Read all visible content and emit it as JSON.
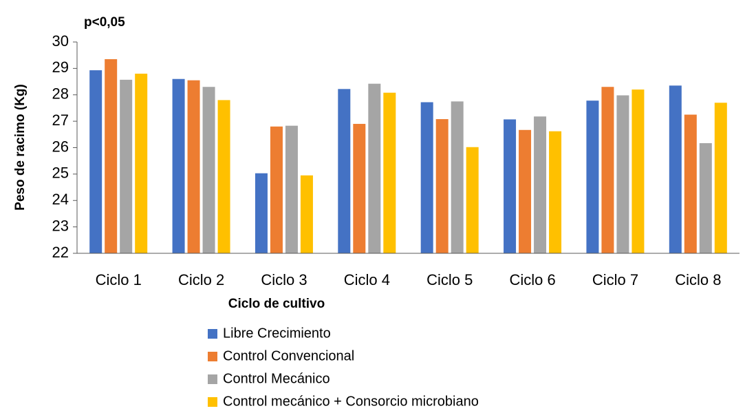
{
  "chart_data": {
    "type": "bar",
    "annotation": "p<0,05",
    "x_label": "Ciclo de cultivo",
    "y_label": "Peso de racimo (Kg)",
    "categories": [
      "Ciclo 1",
      "Ciclo 2",
      "Ciclo 3",
      "Ciclo 4",
      "Ciclo 5",
      "Ciclo 6",
      "Ciclo 7",
      "Ciclo 8"
    ],
    "series": [
      {
        "name": "Libre Crecimiento",
        "color": "#4472c4",
        "values": [
          28.93,
          28.6,
          25.03,
          28.22,
          27.72,
          27.07,
          27.78,
          28.35
        ]
      },
      {
        "name": "Control Convencional",
        "color": "#ed7d31",
        "values": [
          29.35,
          28.55,
          26.8,
          26.9,
          27.08,
          26.67,
          28.3,
          27.25
        ]
      },
      {
        "name": "Control Mecánico",
        "color": "#a5a5a5",
        "values": [
          28.57,
          28.3,
          26.83,
          28.42,
          27.75,
          27.18,
          27.98,
          26.17
        ]
      },
      {
        "name": "Control mecánico + Consorcio microbiano",
        "color": "#ffc000",
        "values": [
          28.8,
          27.8,
          24.95,
          28.08,
          26.02,
          26.62,
          28.2,
          27.7
        ]
      }
    ],
    "ylim": [
      22,
      30
    ],
    "yticks": [
      22,
      23,
      24,
      25,
      26,
      27,
      28,
      29,
      30
    ],
    "grid": false,
    "legend": "bottom"
  }
}
